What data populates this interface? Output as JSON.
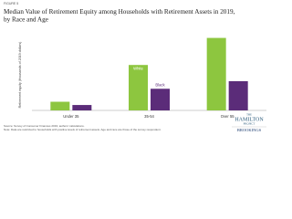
{
  "figure_label": "FIGURE 5",
  "chart_data": {
    "type": "bar",
    "title": "Median Value of Retirement Equity among Households with Retirement Assets in 2019, by Race and Age",
    "y_label": "Retirement equity (thousands of 2019 dollars)",
    "categories": [
      "Under 35",
      "35-54",
      "Over 55"
    ],
    "series": [
      {
        "name": "White",
        "color": "#8dc63f",
        "values": [
          8,
          42,
          67
        ]
      },
      {
        "name": "Black",
        "color": "#5b2c79",
        "values": [
          5,
          20,
          27
        ]
      }
    ],
    "ylim": [
      0,
      70
    ]
  },
  "notes": [
    "Source: Survey of Consumer Finances 2019; authors' calculations.",
    "Note: Data are restricted to households with positive levels of retirement assets. Age and race are those of the survey respondent."
  ],
  "logo": {
    "line1": "THE",
    "line2": "HAMILTON",
    "line3": "PROJECT",
    "line4": "BROOKINGS"
  }
}
